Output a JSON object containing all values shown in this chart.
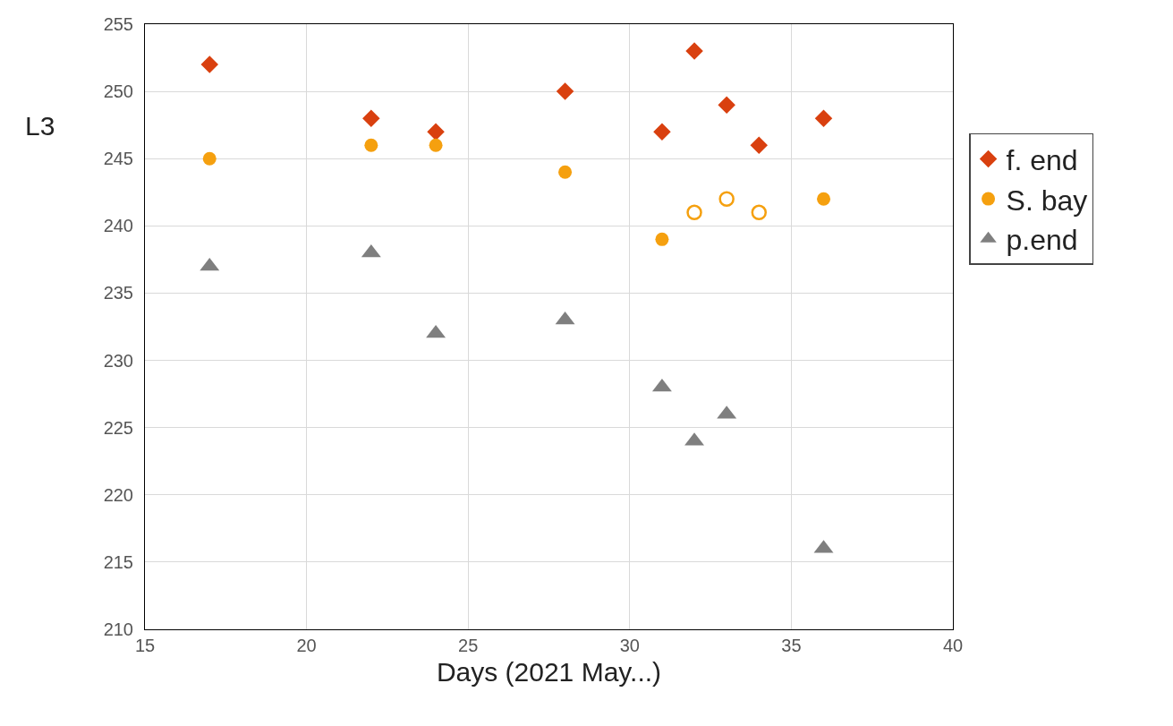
{
  "chart_data": {
    "type": "scatter",
    "xlabel": "Days (2021 May...)",
    "ylabel": "L3",
    "xlim": [
      15,
      40
    ],
    "xticks": [
      15,
      20,
      25,
      30,
      35,
      40
    ],
    "ylim": [
      210,
      255
    ],
    "yticks": [
      210,
      215,
      220,
      225,
      230,
      235,
      240,
      245,
      250,
      255
    ],
    "grid": true,
    "legend": "right",
    "series": [
      {
        "name": "f. end",
        "color": "#d9400f",
        "marker": "diamond",
        "x": [
          17,
          22,
          24,
          28,
          31,
          32,
          33,
          34,
          36
        ],
        "values": [
          252,
          248,
          247,
          250,
          247,
          253,
          249,
          246,
          248
        ]
      },
      {
        "name": "S. bay",
        "color": "#f5a00f",
        "marker": "circle",
        "x": [
          17,
          22,
          24,
          28,
          31,
          36
        ],
        "values": [
          245,
          246,
          246,
          244,
          239,
          242
        ]
      },
      {
        "name": "p.end",
        "color": "#7f7f7f",
        "marker": "triangle",
        "x": [
          17,
          22,
          24,
          28,
          31,
          32,
          33,
          36
        ],
        "values": [
          237,
          238,
          232,
          233,
          228,
          224,
          226,
          216
        ]
      },
      {
        "color": "#f5a00f",
        "marker": "circle",
        "x": [
          32,
          33,
          34
        ],
        "values": [
          241,
          242,
          241
        ]
      }
    ]
  }
}
